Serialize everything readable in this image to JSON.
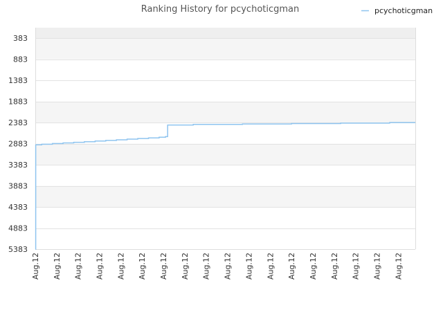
{
  "chart_data": {
    "type": "line",
    "title": "Ranking History for pcychoticgman",
    "xlabel": "",
    "ylabel": "",
    "inverted_y": true,
    "ylim": [
      5383,
      133
    ],
    "y_ticks": [
      383,
      883,
      1383,
      1883,
      2383,
      2883,
      3383,
      3883,
      4383,
      4883,
      5383
    ],
    "x_tick_labels": [
      "Aug.12",
      "Aug.12",
      "Aug.12",
      "Aug.12",
      "Aug.12",
      "Aug.12",
      "Aug.12",
      "Aug.12",
      "Aug.12",
      "Aug.12",
      "Aug.12",
      "Aug.12",
      "Aug.12",
      "Aug.12",
      "Aug.12",
      "Aug.12",
      "Aug.12",
      "Aug.12"
    ],
    "x_range": [
      0,
      17.8
    ],
    "legend": {
      "position": "top-right"
    },
    "grid": true,
    "band_colors": [
      "#efefef",
      "#f5f5f5",
      "#ffffff"
    ],
    "series": [
      {
        "name": "pcychoticgman",
        "color": "#8ec4ef",
        "step": true,
        "points": [
          [
            0.0,
            5383
          ],
          [
            0.02,
            2910
          ],
          [
            0.3,
            2895
          ],
          [
            0.8,
            2880
          ],
          [
            1.3,
            2865
          ],
          [
            1.8,
            2850
          ],
          [
            2.3,
            2835
          ],
          [
            2.8,
            2820
          ],
          [
            3.3,
            2805
          ],
          [
            3.8,
            2790
          ],
          [
            4.3,
            2775
          ],
          [
            4.8,
            2760
          ],
          [
            5.3,
            2745
          ],
          [
            5.8,
            2730
          ],
          [
            6.1,
            2715
          ],
          [
            6.2,
            2440
          ],
          [
            7.4,
            2425
          ],
          [
            9.7,
            2415
          ],
          [
            12.0,
            2405
          ],
          [
            14.3,
            2395
          ],
          [
            16.6,
            2380
          ],
          [
            17.8,
            2380
          ]
        ]
      }
    ]
  }
}
